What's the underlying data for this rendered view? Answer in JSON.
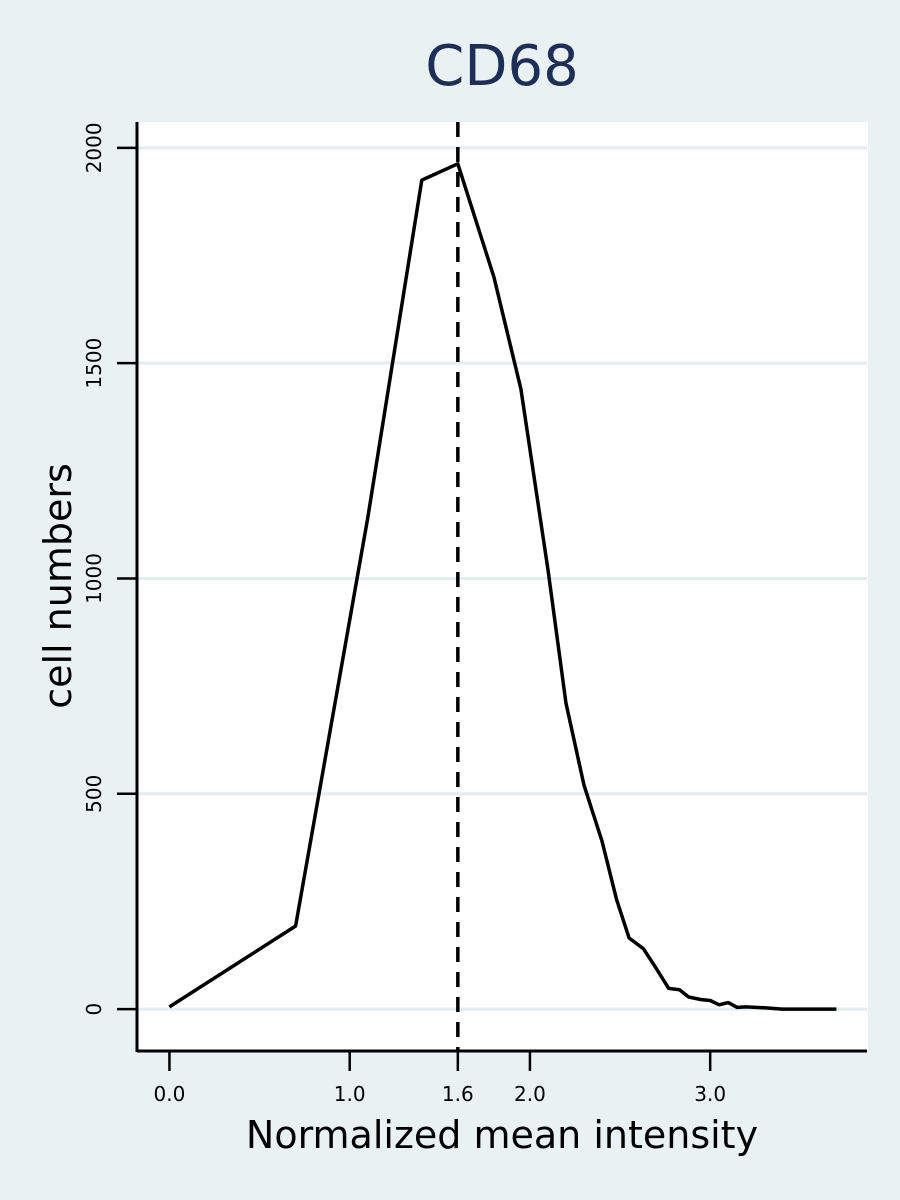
{
  "chart_data": {
    "type": "line",
    "title": "CD68",
    "xlabel": "Normalized mean intensity",
    "ylabel": "cell numbers",
    "xlim": [
      -0.18,
      3.87
    ],
    "ylim": [
      -95,
      2060
    ],
    "x_ticks": [
      {
        "value": 0.0,
        "label": "0.0"
      },
      {
        "value": 1.0,
        "label": "1.0"
      },
      {
        "value": 1.6,
        "label": "1.6"
      },
      {
        "value": 2.0,
        "label": "2.0"
      },
      {
        "value": 3.0,
        "label": "3.0"
      }
    ],
    "y_ticks": [
      {
        "value": 0,
        "label": "0"
      },
      {
        "value": 500,
        "label": "500"
      },
      {
        "value": 1000,
        "label": "1000"
      },
      {
        "value": 1500,
        "label": "1500"
      },
      {
        "value": 2000,
        "label": "2000"
      }
    ],
    "grid": "horizontal",
    "reference_line": {
      "x": 1.6,
      "style": "dashed"
    },
    "series": [
      {
        "x": [
          0.0,
          0.7,
          1.1,
          1.4,
          1.6,
          1.8,
          1.95,
          2.1,
          2.2,
          2.3,
          2.4,
          2.48,
          2.55,
          2.63,
          2.7,
          2.77,
          2.83,
          2.88,
          2.95,
          3.0,
          3.05,
          3.1,
          3.15,
          3.2,
          3.3,
          3.4,
          3.5,
          3.6,
          3.7
        ],
        "y": [
          5,
          193,
          1140,
          1925,
          1963,
          1700,
          1440,
          1020,
          710,
          520,
          390,
          255,
          165,
          140,
          95,
          48,
          45,
          28,
          22,
          20,
          10,
          15,
          4,
          5,
          3,
          0,
          0,
          0,
          0
        ]
      }
    ],
    "colors": {
      "line": "#000000",
      "grid": "#e3ecef",
      "background": "#eaf1f3",
      "plot_background": "#ffffff",
      "title": "#1e2f57"
    }
  }
}
